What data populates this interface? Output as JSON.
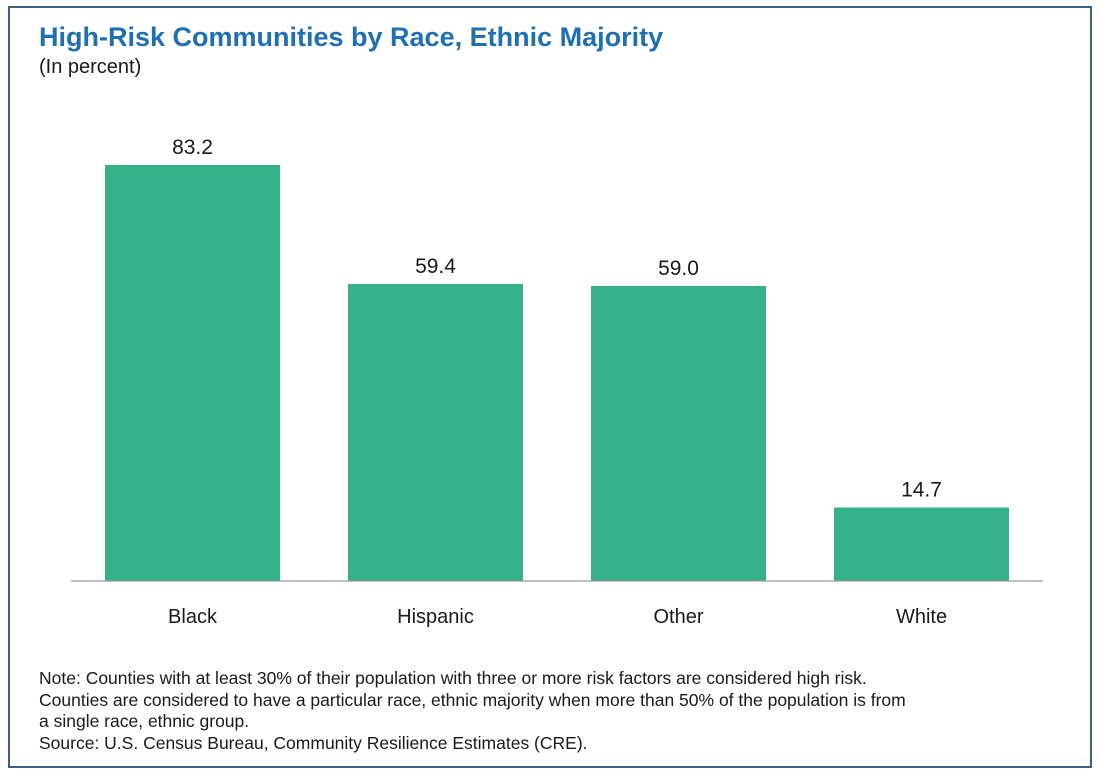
{
  "title": "High-Risk Communities by Race, Ethnic Majority",
  "subtitle": "(In percent)",
  "colors": {
    "bar": "#34b08b",
    "title": "#1f6fb2",
    "frame": "#3a5f8a",
    "axis": "#9a9a9a"
  },
  "chart_data": {
    "type": "bar",
    "title": "High-Risk Communities by Race, Ethnic Majority",
    "subtitle": "(In percent)",
    "categories": [
      "Black",
      "Hispanic",
      "Other",
      "White"
    ],
    "values": [
      83.2,
      59.4,
      59.0,
      14.7
    ],
    "value_labels": [
      "83.2",
      "59.4",
      "59.0",
      "14.7"
    ],
    "xlabel": "",
    "ylabel": "",
    "ylim": [
      0,
      100
    ],
    "grid": false,
    "legend": "none"
  },
  "notes": [
    "Note: Counties with at least 30% of their population with three or more risk factors are considered high risk.",
    "Counties are considered to have a particular race, ethnic majority when more than 50% of the population is from",
    "a single race, ethnic group.",
    "Source: U.S. Census Bureau, Community Resilience Estimates (CRE)."
  ]
}
